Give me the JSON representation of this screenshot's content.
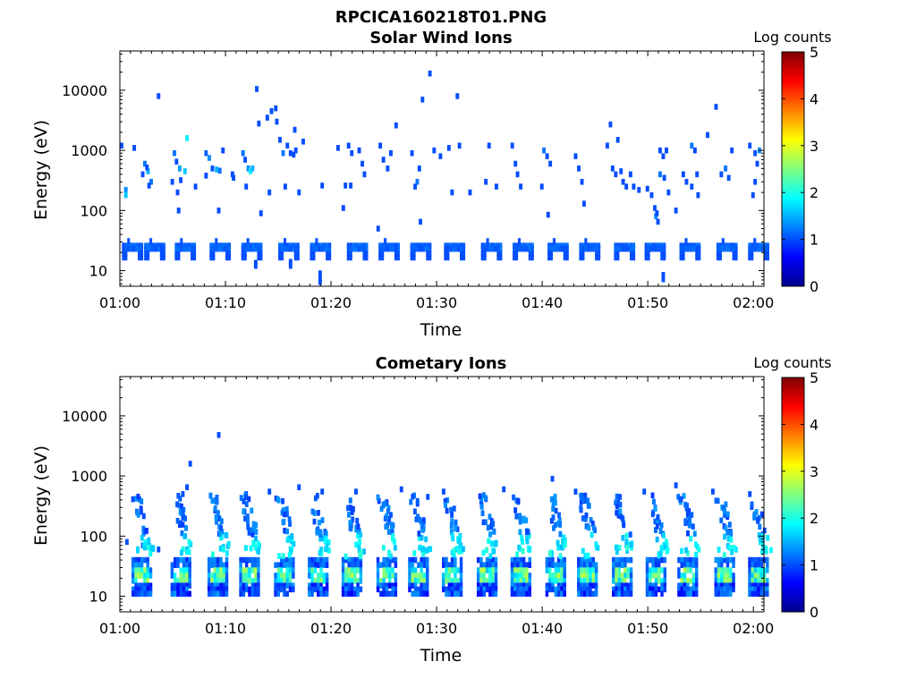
{
  "figure_title": "RPCICA160218T01.PNG",
  "chart_data": [
    {
      "type": "heatmap",
      "title": "Solar Wind Ions",
      "xlabel": "Time",
      "ylabel": "Energy (eV)",
      "xlim": [
        "01:00",
        "02:01"
      ],
      "ylim": [
        5.5,
        45000
      ],
      "yscale": "log",
      "xticks": [
        "01:00",
        "01:10",
        "01:20",
        "01:30",
        "01:40",
        "01:50",
        "02:00"
      ],
      "yticks": [
        "10",
        "100",
        "1000",
        "10000"
      ],
      "colorbar": {
        "label": "Log counts",
        "range": [
          0,
          5
        ],
        "ticks": [
          "0",
          "1",
          "2",
          "3",
          "4",
          "5"
        ],
        "colormap": "jet"
      },
      "grid": false,
      "burst_times_min": [
        0.2,
        2.3,
        5.2,
        8.5,
        11.5,
        15.0,
        18.0,
        21.5,
        24.5,
        27.5,
        30.7,
        34.2,
        37.2,
        40.5,
        43.5,
        46.8,
        49.7,
        53.0,
        56.5,
        59.5
      ],
      "cells": [
        {
          "t": 0.0,
          "e": 1200,
          "v": 1.0
        },
        {
          "t": 1.2,
          "e": 1100,
          "v": 1.0
        },
        {
          "t": 0.4,
          "e": 220,
          "v": 1.3
        },
        {
          "t": 0.4,
          "e": 180,
          "v": 1.6
        },
        {
          "t": 2.2,
          "e": 600,
          "v": 1.2
        },
        {
          "t": 2.5,
          "e": 450,
          "v": 1.5
        },
        {
          "t": 2.0,
          "e": 400,
          "v": 1.0
        },
        {
          "t": 2.8,
          "e": 300,
          "v": 1.2
        },
        {
          "t": 2.6,
          "e": 260,
          "v": 1.0
        },
        {
          "t": 2.4,
          "e": 520,
          "v": 1.0
        },
        {
          "t": 3.5,
          "e": 8000,
          "v": 1.0
        },
        {
          "t": 5.0,
          "e": 900,
          "v": 1.2
        },
        {
          "t": 5.2,
          "e": 650,
          "v": 1.0
        },
        {
          "t": 5.5,
          "e": 500,
          "v": 1.4
        },
        {
          "t": 6.0,
          "e": 450,
          "v": 1.6
        },
        {
          "t": 6.2,
          "e": 1600,
          "v": 1.8
        },
        {
          "t": 4.8,
          "e": 300,
          "v": 1.0
        },
        {
          "t": 5.6,
          "e": 320,
          "v": 1.0
        },
        {
          "t": 5.3,
          "e": 200,
          "v": 1.0
        },
        {
          "t": 5.4,
          "e": 100,
          "v": 1.0
        },
        {
          "t": 7.0,
          "e": 250,
          "v": 1.0
        },
        {
          "t": 8.0,
          "e": 900,
          "v": 1.1
        },
        {
          "t": 8.3,
          "e": 750,
          "v": 1.3
        },
        {
          "t": 8.6,
          "e": 500,
          "v": 1.0
        },
        {
          "t": 9.0,
          "e": 480,
          "v": 1.5
        },
        {
          "t": 9.3,
          "e": 460,
          "v": 1.2
        },
        {
          "t": 9.6,
          "e": 1000,
          "v": 1.0
        },
        {
          "t": 9.2,
          "e": 100,
          "v": 1.0
        },
        {
          "t": 8.0,
          "e": 380,
          "v": 1.0
        },
        {
          "t": 10.5,
          "e": 400,
          "v": 1.0
        },
        {
          "t": 10.6,
          "e": 350,
          "v": 1.0
        },
        {
          "t": 11.5,
          "e": 900,
          "v": 1.2
        },
        {
          "t": 11.7,
          "e": 700,
          "v": 1.0
        },
        {
          "t": 12.0,
          "e": 500,
          "v": 1.3
        },
        {
          "t": 12.2,
          "e": 450,
          "v": 1.8
        },
        {
          "t": 12.4,
          "e": 500,
          "v": 1.5
        },
        {
          "t": 11.8,
          "e": 250,
          "v": 1.0
        },
        {
          "t": 12.8,
          "e": 10500,
          "v": 1.0
        },
        {
          "t": 13.0,
          "e": 2800,
          "v": 1.0
        },
        {
          "t": 13.2,
          "e": 90,
          "v": 1.0
        },
        {
          "t": 13.8,
          "e": 3500,
          "v": 1.0
        },
        {
          "t": 14.2,
          "e": 4500,
          "v": 1.0
        },
        {
          "t": 14.6,
          "e": 5000,
          "v": 1.0
        },
        {
          "t": 14.0,
          "e": 200,
          "v": 1.0
        },
        {
          "t": 14.7,
          "e": 3000,
          "v": 1.0
        },
        {
          "t": 15.0,
          "e": 1500,
          "v": 1.0
        },
        {
          "t": 15.3,
          "e": 900,
          "v": 1.2
        },
        {
          "t": 15.7,
          "e": 1200,
          "v": 1.0
        },
        {
          "t": 16.0,
          "e": 900,
          "v": 1.0
        },
        {
          "t": 16.3,
          "e": 850,
          "v": 1.0
        },
        {
          "t": 16.5,
          "e": 1000,
          "v": 1.0
        },
        {
          "t": 15.5,
          "e": 250,
          "v": 1.0
        },
        {
          "t": 16.8,
          "e": 200,
          "v": 1.0
        },
        {
          "t": 17.2,
          "e": 1400,
          "v": 1.0
        },
        {
          "t": 16.4,
          "e": 2200,
          "v": 1.0
        },
        {
          "t": 19.0,
          "e": 260,
          "v": 1.0
        },
        {
          "t": 20.5,
          "e": 1100,
          "v": 1.0
        },
        {
          "t": 21.5,
          "e": 1200,
          "v": 1.0
        },
        {
          "t": 21.8,
          "e": 900,
          "v": 1.0
        },
        {
          "t": 21.2,
          "e": 260,
          "v": 1.0
        },
        {
          "t": 21.7,
          "e": 260,
          "v": 1.0
        },
        {
          "t": 22.5,
          "e": 1000,
          "v": 1.0
        },
        {
          "t": 22.8,
          "e": 600,
          "v": 1.0
        },
        {
          "t": 23.0,
          "e": 400,
          "v": 1.0
        },
        {
          "t": 21.0,
          "e": 110,
          "v": 1.0
        },
        {
          "t": 24.5,
          "e": 1200,
          "v": 1.0
        },
        {
          "t": 24.8,
          "e": 700,
          "v": 1.0
        },
        {
          "t": 25.2,
          "e": 500,
          "v": 1.0
        },
        {
          "t": 25.5,
          "e": 900,
          "v": 1.0
        },
        {
          "t": 24.3,
          "e": 50,
          "v": 1.0
        },
        {
          "t": 26.0,
          "e": 2600,
          "v": 1.0
        },
        {
          "t": 27.5,
          "e": 900,
          "v": 1.0
        },
        {
          "t": 28.0,
          "e": 300,
          "v": 1.2
        },
        {
          "t": 28.2,
          "e": 500,
          "v": 1.0
        },
        {
          "t": 27.8,
          "e": 250,
          "v": 1.0
        },
        {
          "t": 28.5,
          "e": 7000,
          "v": 1.0
        },
        {
          "t": 29.2,
          "e": 19000,
          "v": 1.0
        },
        {
          "t": 28.3,
          "e": 65,
          "v": 1.0
        },
        {
          "t": 29.6,
          "e": 1000,
          "v": 1.0
        },
        {
          "t": 30.2,
          "e": 800,
          "v": 1.0
        },
        {
          "t": 31.0,
          "e": 1100,
          "v": 1.0
        },
        {
          "t": 31.3,
          "e": 200,
          "v": 1.0
        },
        {
          "t": 31.8,
          "e": 8000,
          "v": 1.0
        },
        {
          "t": 32.0,
          "e": 1200,
          "v": 1.0
        },
        {
          "t": 33.0,
          "e": 200,
          "v": 1.0
        },
        {
          "t": 34.5,
          "e": 300,
          "v": 1.0
        },
        {
          "t": 35.5,
          "e": 250,
          "v": 1.0
        },
        {
          "t": 34.8,
          "e": 1200,
          "v": 1.0
        },
        {
          "t": 37.0,
          "e": 1200,
          "v": 1.0
        },
        {
          "t": 37.3,
          "e": 600,
          "v": 1.0
        },
        {
          "t": 37.5,
          "e": 400,
          "v": 1.0
        },
        {
          "t": 37.8,
          "e": 250,
          "v": 1.0
        },
        {
          "t": 40.0,
          "e": 1000,
          "v": 1.2
        },
        {
          "t": 40.3,
          "e": 800,
          "v": 1.0
        },
        {
          "t": 40.6,
          "e": 600,
          "v": 1.0
        },
        {
          "t": 39.8,
          "e": 250,
          "v": 1.0
        },
        {
          "t": 40.4,
          "e": 85,
          "v": 1.0
        },
        {
          "t": 43.0,
          "e": 800,
          "v": 1.0
        },
        {
          "t": 43.3,
          "e": 500,
          "v": 1.0
        },
        {
          "t": 43.6,
          "e": 300,
          "v": 1.0
        },
        {
          "t": 43.8,
          "e": 130,
          "v": 1.0
        },
        {
          "t": 46.0,
          "e": 1200,
          "v": 1.0
        },
        {
          "t": 46.3,
          "e": 2700,
          "v": 1.0
        },
        {
          "t": 46.5,
          "e": 500,
          "v": 1.0
        },
        {
          "t": 46.8,
          "e": 400,
          "v": 1.0
        },
        {
          "t": 47.0,
          "e": 1500,
          "v": 1.0
        },
        {
          "t": 47.3,
          "e": 450,
          "v": 1.0
        },
        {
          "t": 47.5,
          "e": 300,
          "v": 1.0
        },
        {
          "t": 47.8,
          "e": 250,
          "v": 1.0
        },
        {
          "t": 48.2,
          "e": 400,
          "v": 1.0
        },
        {
          "t": 48.5,
          "e": 250,
          "v": 1.0
        },
        {
          "t": 49.0,
          "e": 220,
          "v": 1.0
        },
        {
          "t": 49.8,
          "e": 230,
          "v": 1.0
        },
        {
          "t": 50.2,
          "e": 180,
          "v": 1.0
        },
        {
          "t": 50.5,
          "e": 110,
          "v": 1.0
        },
        {
          "t": 50.6,
          "e": 80,
          "v": 1.3
        },
        {
          "t": 50.8,
          "e": 65,
          "v": 1.0
        },
        {
          "t": 51.0,
          "e": 1000,
          "v": 1.0
        },
        {
          "t": 51.3,
          "e": 800,
          "v": 1.0
        },
        {
          "t": 51.0,
          "e": 400,
          "v": 1.2
        },
        {
          "t": 51.4,
          "e": 350,
          "v": 1.0
        },
        {
          "t": 51.6,
          "e": 1000,
          "v": 1.0
        },
        {
          "t": 51.8,
          "e": 200,
          "v": 1.0
        },
        {
          "t": 50.7,
          "e": 90,
          "v": 1.0
        },
        {
          "t": 52.5,
          "e": 100,
          "v": 1.0
        },
        {
          "t": 53.2,
          "e": 400,
          "v": 1.0
        },
        {
          "t": 53.5,
          "e": 300,
          "v": 1.0
        },
        {
          "t": 54.0,
          "e": 1200,
          "v": 1.2
        },
        {
          "t": 54.3,
          "e": 1000,
          "v": 1.0
        },
        {
          "t": 54.5,
          "e": 400,
          "v": 1.0
        },
        {
          "t": 54.0,
          "e": 250,
          "v": 1.0
        },
        {
          "t": 54.6,
          "e": 180,
          "v": 1.0
        },
        {
          "t": 55.5,
          "e": 1800,
          "v": 1.0
        },
        {
          "t": 56.3,
          "e": 5300,
          "v": 1.0
        },
        {
          "t": 56.8,
          "e": 400,
          "v": 1.0
        },
        {
          "t": 57.2,
          "e": 500,
          "v": 1.2
        },
        {
          "t": 57.5,
          "e": 350,
          "v": 1.0
        },
        {
          "t": 57.8,
          "e": 1000,
          "v": 1.0
        },
        {
          "t": 59.5,
          "e": 1200,
          "v": 1.0
        },
        {
          "t": 60.0,
          "e": 900,
          "v": 1.0
        },
        {
          "t": 60.2,
          "e": 600,
          "v": 1.0
        },
        {
          "t": 60.4,
          "e": 1000,
          "v": 1.3
        },
        {
          "t": 60.0,
          "e": 300,
          "v": 1.0
        },
        {
          "t": 59.8,
          "e": 180,
          "v": 1.0
        }
      ]
    },
    {
      "type": "heatmap",
      "title": "Cometary Ions",
      "xlabel": "Time",
      "ylabel": "Energy (eV)",
      "xlim": [
        "01:00",
        "02:01"
      ],
      "ylim": [
        5.5,
        45000
      ],
      "yscale": "log",
      "xticks": [
        "01:00",
        "01:10",
        "01:20",
        "01:30",
        "01:40",
        "01:50",
        "02:00"
      ],
      "yticks": [
        "10",
        "100",
        "1000",
        "10000"
      ],
      "colorbar": {
        "label": "Log counts",
        "range": [
          0,
          5
        ],
        "ticks": [
          "0",
          "1",
          "2",
          "3",
          "4",
          "5"
        ],
        "colormap": "jet"
      },
      "grid": false,
      "burst_times_min": [
        1.3,
        5.0,
        8.5,
        11.5,
        14.8,
        18.0,
        21.2,
        24.5,
        27.5,
        30.7,
        34.0,
        37.2,
        40.5,
        43.5,
        46.8,
        50.0,
        53.0,
        56.5,
        59.7
      ],
      "cells": [
        {
          "t": 9.2,
          "e": 4800,
          "v": 1.0
        },
        {
          "t": 6.5,
          "e": 1600,
          "v": 1.0
        },
        {
          "t": 6.2,
          "e": 650,
          "v": 1.0
        },
        {
          "t": 5.8,
          "e": 500,
          "v": 1.0
        },
        {
          "t": 11.8,
          "e": 500,
          "v": 1.0
        },
        {
          "t": 14.0,
          "e": 550,
          "v": 1.0
        },
        {
          "t": 16.8,
          "e": 650,
          "v": 1.0
        },
        {
          "t": 19.0,
          "e": 550,
          "v": 1.0
        },
        {
          "t": 22.2,
          "e": 550,
          "v": 1.0
        },
        {
          "t": 26.5,
          "e": 600,
          "v": 1.0
        },
        {
          "t": 29.0,
          "e": 450,
          "v": 1.0
        },
        {
          "t": 30.5,
          "e": 550,
          "v": 1.0
        },
        {
          "t": 36.2,
          "e": 600,
          "v": 1.0
        },
        {
          "t": 40.8,
          "e": 900,
          "v": 1.0
        },
        {
          "t": 43.0,
          "e": 550,
          "v": 1.0
        },
        {
          "t": 49.5,
          "e": 550,
          "v": 1.0
        },
        {
          "t": 52.5,
          "e": 700,
          "v": 1.0
        },
        {
          "t": 56.0,
          "e": 550,
          "v": 1.0
        },
        {
          "t": 59.5,
          "e": 500,
          "v": 1.0
        },
        {
          "t": 0.5,
          "e": 80,
          "v": 1.0
        },
        {
          "t": 2.0,
          "e": 70,
          "v": 1.0
        },
        {
          "t": 3.5,
          "e": 60,
          "v": 1.0
        },
        {
          "t": 60.5,
          "e": 80,
          "v": 1.0
        },
        {
          "t": 47.2,
          "e": 450,
          "v": 1.0
        }
      ]
    }
  ]
}
